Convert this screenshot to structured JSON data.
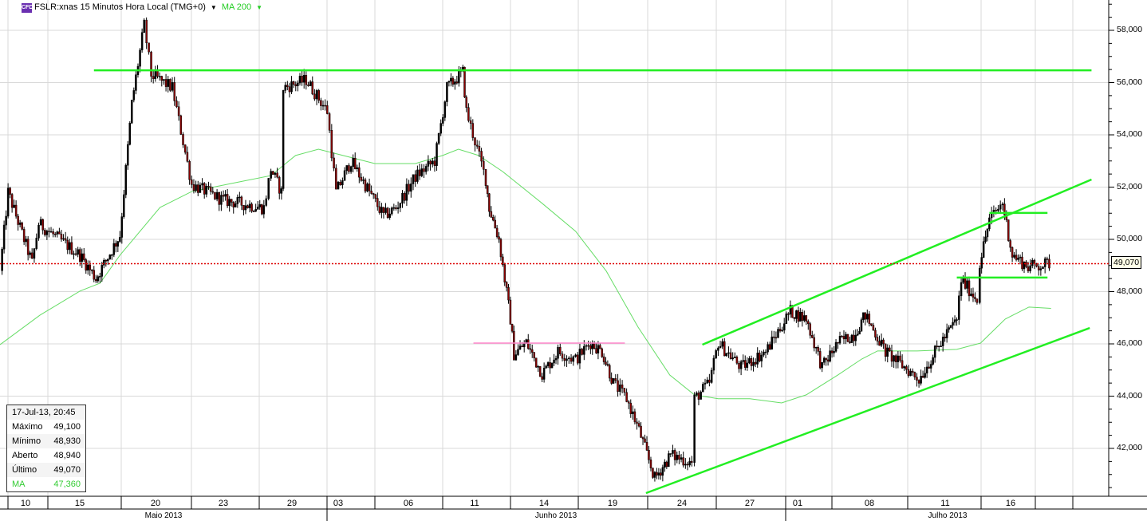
{
  "header": {
    "icon_label": "CFD",
    "symbol": "FSLR:xnas 15 Minutos Hora Local (TMG+0)",
    "indicator": "MA 200"
  },
  "info_box": {
    "datetime": "17-Jul-13, 20:45",
    "rows": [
      {
        "label": "Máximo",
        "value": "49,100"
      },
      {
        "label": "Mínimo",
        "value": "48,930"
      },
      {
        "label": "Aberto",
        "value": "48,940"
      },
      {
        "label": "Último",
        "value": "49,070"
      },
      {
        "label": "MA",
        "value": "47,360"
      }
    ]
  },
  "colors": {
    "trendline": "#22ee22",
    "ma": "#66dd66",
    "support_pink": "#ff88cc",
    "last_price": "#dd0000",
    "candle_down": "#8b0000",
    "candle_up": "#000000"
  },
  "chart_data": {
    "type": "candlestick",
    "title": "FSLR:xnas 15 Minutos Hora Local (TMG+0)",
    "ylim": [
      40000,
      59000
    ],
    "grid": true,
    "y_ticks": [
      "58,000",
      "56,000",
      "54,000",
      "52,000",
      "50,000",
      "48,000",
      "46,000",
      "44,000",
      "42,000"
    ],
    "y_tick_values": [
      58000,
      56000,
      54000,
      52000,
      50000,
      48000,
      46000,
      44000,
      42000
    ],
    "x_day_labels": [
      "10",
      "15",
      "20",
      "23",
      "29",
      "03",
      "06",
      "11",
      "14",
      "19",
      "24",
      "27",
      "01",
      "08",
      "11",
      "16"
    ],
    "x_month_labels": [
      "Maio 2013",
      "Junho 2013",
      "Julho 2013"
    ],
    "last_price": 49070,
    "last_price_label": "49,070",
    "price_path": [
      [
        "05-09 09:30",
        48800
      ],
      [
        "05-09 12:30",
        51800
      ],
      [
        "05-10 15:00",
        49100
      ],
      [
        "05-13 11:00",
        50600
      ],
      [
        "05-15 13:30",
        49400
      ],
      [
        "05-16 13:00",
        48500
      ],
      [
        "05-17 15:30",
        50150
      ],
      [
        "05-20 12:30",
        55200
      ],
      [
        "05-20 16:00",
        58200
      ],
      [
        "05-21 11:30",
        56300
      ],
      [
        "05-22 11:00",
        55800
      ],
      [
        "05-23 10:00",
        52100
      ],
      [
        "05-24 12:30",
        51500
      ],
      [
        "05-29 11:00",
        51200
      ],
      [
        "05-29 13:00",
        52700
      ],
      [
        "05-29 16:00",
        51800
      ],
      [
        "05-30 10:00",
        55800
      ],
      [
        "05-31 10:00",
        56100
      ],
      [
        "06-03 09:30",
        54900
      ],
      [
        "06-03 12:00",
        51800
      ],
      [
        "06-04 09:45",
        53000
      ],
      [
        "06-05 12:30",
        50900
      ],
      [
        "06-05 16:00",
        51200
      ],
      [
        "06-06 15:00",
        52400
      ],
      [
        "06-07 14:00",
        53000
      ],
      [
        "06-10 11:00",
        55800
      ],
      [
        "06-10 15:30",
        56400
      ],
      [
        "06-11 10:00",
        54900
      ],
      [
        "06-11 15:30",
        52300
      ],
      [
        "06-12 10:00",
        51200
      ],
      [
        "06-12 12:45",
        50000
      ],
      [
        "06-13 09:30",
        46950
      ],
      [
        "06-13 10:30",
        45600
      ],
      [
        "06-13 14:00",
        46050
      ],
      [
        "06-14 12:00",
        44850
      ],
      [
        "06-17 10:00",
        45700
      ],
      [
        "06-17 15:00",
        45400
      ],
      [
        "06-18 12:45",
        46050
      ],
      [
        "06-19 09:30",
        45700
      ],
      [
        "06-19 12:45",
        44500
      ],
      [
        "06-20 10:00",
        43900
      ],
      [
        "06-20 13:30",
        42700
      ],
      [
        "06-21 11:30",
        40850
      ],
      [
        "06-24 09:30",
        41750
      ],
      [
        "06-24 15:30",
        41450
      ],
      [
        "06-25 09:45",
        43900
      ],
      [
        "06-25 14:00",
        44500
      ],
      [
        "06-26 10:00",
        46050
      ],
      [
        "06-27 10:00",
        45100
      ],
      [
        "06-28 10:30",
        45700
      ],
      [
        "07-01 11:00",
        47250
      ],
      [
        "07-01 15:30",
        46950
      ],
      [
        "07-02 13:30",
        45100
      ],
      [
        "07-03 11:30",
        46050
      ],
      [
        "07-05 09:30",
        46350
      ],
      [
        "07-05 12:45",
        47100
      ],
      [
        "07-08 12:00",
        45700
      ],
      [
        "07-09 15:00",
        44650
      ],
      [
        "07-10 14:45",
        46050
      ],
      [
        "07-11 12:45",
        46950
      ],
      [
        "07-11 14:00",
        48450
      ],
      [
        "07-12 12:00",
        47700
      ],
      [
        "07-12 12:45",
        49100
      ],
      [
        "07-12 15:30",
        50750
      ],
      [
        "07-15 12:45",
        51400
      ],
      [
        "07-15 15:30",
        49400
      ],
      [
        "07-16 13:30",
        48950
      ],
      [
        "07-17 13:00",
        49070
      ]
    ],
    "ma_series": {
      "name": "MA 200",
      "points": [
        [
          "05-09 09:30",
          45970
        ],
        [
          "05-13 11:30",
          47100
        ],
        [
          "05-15 13:30",
          48020
        ],
        [
          "05-16 14:30",
          48320
        ],
        [
          "05-17 15:30",
          49390
        ],
        [
          "05-21 14:00",
          51220
        ],
        [
          "05-23 10:00",
          51830
        ],
        [
          "05-28 10:30",
          52200
        ],
        [
          "05-29 13:00",
          52440
        ],
        [
          "05-30 13:30",
          53210
        ],
        [
          "05-31 13:30",
          53450
        ],
        [
          "06-03 14:00",
          53210
        ],
        [
          "06-05 10:00",
          52900
        ],
        [
          "06-06 15:00",
          52900
        ],
        [
          "06-10 09:45",
          53210
        ],
        [
          "06-10 14:15",
          53450
        ],
        [
          "06-11 13:30",
          53210
        ],
        [
          "06-12 13:45",
          52600
        ],
        [
          "06-14 12:00",
          51380
        ],
        [
          "06-17 15:00",
          50310
        ],
        [
          "06-19 10:45",
          48780
        ],
        [
          "06-20 13:15",
          46640
        ],
        [
          "06-21 15:45",
          44810
        ],
        [
          "06-25 09:45",
          44050
        ],
        [
          "06-26 10:00",
          43900
        ],
        [
          "06-27 12:30",
          43900
        ],
        [
          "06-28 15:00",
          43740
        ],
        [
          "07-01 15:30",
          44050
        ],
        [
          "07-03 11:30",
          44810
        ],
        [
          "07-05 11:45",
          45420
        ],
        [
          "07-08 09:45",
          45730
        ],
        [
          "07-09 14:30",
          45730
        ],
        [
          "07-11 12:45",
          45790
        ],
        [
          "07-12 13:00",
          46030
        ],
        [
          "07-15 13:30",
          46950
        ],
        [
          "07-16 13:45",
          47410
        ],
        [
          "07-17 13:30",
          47360
        ]
      ]
    },
    "drawings": [
      {
        "name": "resistance-line",
        "color": "trendline",
        "from": [
          "05-16 12:15",
          56470
        ],
        "to": [
          "07-19 12:00",
          56470
        ]
      },
      {
        "name": "pink-support-line",
        "color": "support_pink",
        "from": [
          "06-11 12:00",
          46030
        ],
        "to": [
          "06-19 16:00",
          46030
        ]
      },
      {
        "name": "upper-channel-line",
        "color": "trendline",
        "from": [
          "06-25 12:00",
          45970
        ],
        "to": [
          "07-19 12:00",
          52290
        ]
      },
      {
        "name": "lower-channel-line",
        "color": "trendline",
        "from": [
          "06-20 15:30",
          40290
        ],
        "to": [
          "07-19 11:30",
          46610
        ]
      },
      {
        "name": "short-resistance-line",
        "color": "trendline",
        "from": [
          "07-12 15:30",
          51010
        ],
        "to": [
          "07-17 12:30",
          51010
        ]
      },
      {
        "name": "short-support-line",
        "color": "trendline",
        "from": [
          "07-11 12:45",
          48540
        ],
        "to": [
          "07-17 12:30",
          48540
        ]
      }
    ]
  }
}
